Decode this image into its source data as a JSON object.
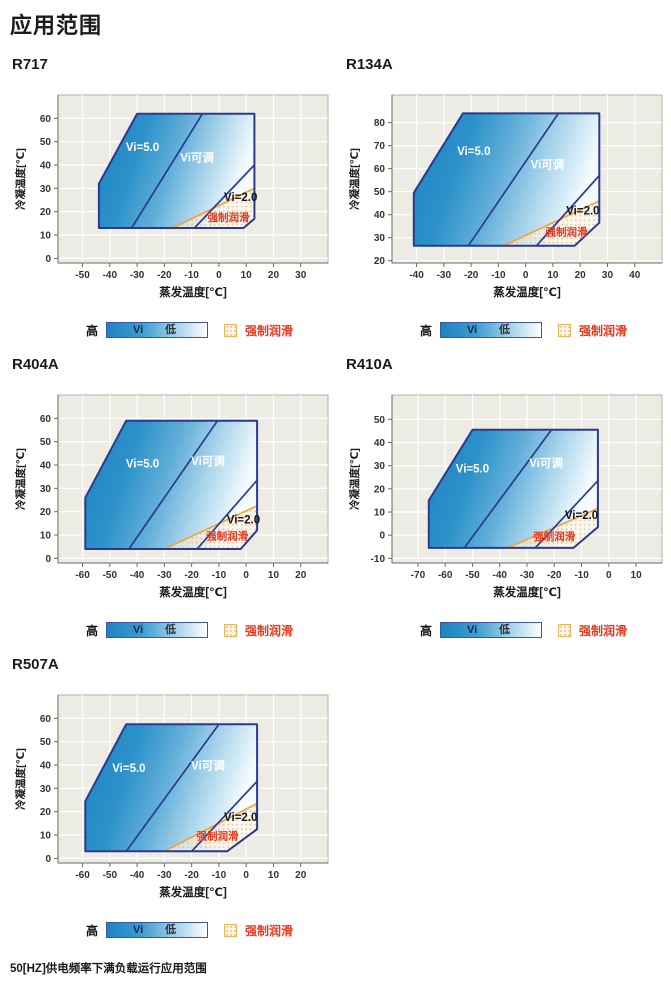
{
  "page": {
    "title": "应用范围",
    "footnote": "50[HZ]供电频率下满负载运行应用范围"
  },
  "legend": {
    "high": "高",
    "vi": "Vi",
    "low": "低",
    "forced": "强制润滑"
  },
  "colors": {
    "plot_bg": "#ecebe4",
    "grid": "#ffffff",
    "frame": "#b3b1a7",
    "axis": "#6b6963",
    "tick_text": "#34322e",
    "region_border": "#2b3a8f",
    "fill_dark": "#1d83c1",
    "fill_light": "#f4fbff",
    "forced_line": "#f2a33c",
    "label_light": "#ffffff",
    "label_dark": "#15151a",
    "label_red": "#e23a1e"
  },
  "chart_data": [
    {
      "type": "area",
      "name": "R717",
      "xlabel": "蒸发温度[℃]",
      "ylabel": "冷凝温度[℃]",
      "xlim": [
        -59,
        40
      ],
      "ylim": [
        -2,
        70
      ],
      "xticks": [
        -50,
        -40,
        -30,
        -20,
        -10,
        0,
        10,
        20,
        30
      ],
      "yticks": [
        0,
        10,
        20,
        30,
        40,
        50,
        60
      ],
      "envelope": [
        [
          -44,
          13
        ],
        [
          -44,
          32
        ],
        [
          -30,
          62
        ],
        [
          13,
          62
        ],
        [
          13,
          17
        ],
        [
          9,
          13
        ]
      ],
      "vi50_boundary": [
        [
          -32,
          13
        ],
        [
          -6,
          62
        ]
      ],
      "vi20_boundary": [
        [
          -9,
          13
        ],
        [
          13,
          40
        ]
      ],
      "forced_lube_boundary": [
        [
          -17,
          13
        ],
        [
          13,
          30
        ]
      ],
      "forced_lube_region": [
        [
          -17,
          13
        ],
        [
          13,
          30
        ],
        [
          13,
          17
        ],
        [
          9,
          13
        ]
      ],
      "annotations": [
        {
          "id": "vi50",
          "text": "Vi=5.0",
          "x": -28,
          "y": 46,
          "color": "light"
        },
        {
          "id": "vi-adjustable",
          "text": "Vi可调",
          "x": -8,
          "y": 41.5,
          "color": "light"
        },
        {
          "id": "vi20",
          "text": "Vi=2.0",
          "x": 8,
          "y": 24.5,
          "color": "dark"
        },
        {
          "id": "forced-lube",
          "text": "强制润滑",
          "x": 3.5,
          "y": 16,
          "color": "red"
        }
      ]
    },
    {
      "type": "area",
      "name": "R134A",
      "xlabel": "蒸发温度[℃]",
      "ylabel": "冷凝温度[℃]",
      "xlim": [
        -49,
        50
      ],
      "ylim": [
        19,
        92
      ],
      "xticks": [
        -40,
        -30,
        -20,
        -10,
        0,
        10,
        20,
        30,
        40
      ],
      "yticks": [
        20,
        30,
        40,
        50,
        60,
        70,
        80
      ],
      "envelope": [
        [
          -41,
          26.5
        ],
        [
          -41,
          49.5
        ],
        [
          -23,
          84
        ],
        [
          27,
          84
        ],
        [
          27,
          36.5
        ],
        [
          18,
          26.5
        ]
      ],
      "vi50_boundary": [
        [
          -21,
          26.5
        ],
        [
          12,
          84
        ]
      ],
      "vi20_boundary": [
        [
          4,
          26.5
        ],
        [
          27,
          57
        ]
      ],
      "forced_lube_boundary": [
        [
          -8,
          26.5
        ],
        [
          27,
          46
        ]
      ],
      "forced_lube_region": [
        [
          -8,
          26.5
        ],
        [
          27,
          46
        ],
        [
          27,
          36.5
        ],
        [
          18,
          26.5
        ]
      ],
      "annotations": [
        {
          "id": "vi50",
          "text": "Vi=5.0",
          "x": -19,
          "y": 66,
          "color": "light"
        },
        {
          "id": "vi-adjustable",
          "text": "Vi可调",
          "x": 8,
          "y": 60,
          "color": "light"
        },
        {
          "id": "vi20",
          "text": "Vi=2.0",
          "x": 21,
          "y": 40,
          "color": "dark"
        },
        {
          "id": "forced-lube",
          "text": "强制润滑",
          "x": 15,
          "y": 31,
          "color": "red"
        }
      ]
    },
    {
      "type": "area",
      "name": "R404A",
      "xlabel": "蒸发温度[℃]",
      "ylabel": "冷凝温度[℃]",
      "xlim": [
        -69,
        30
      ],
      "ylim": [
        -2,
        70
      ],
      "xticks": [
        -60,
        -50,
        -40,
        -30,
        -20,
        -10,
        0,
        10,
        20
      ],
      "yticks": [
        0,
        10,
        20,
        30,
        40,
        50,
        60
      ],
      "envelope": [
        [
          -59,
          4
        ],
        [
          -59,
          26
        ],
        [
          -44,
          59
        ],
        [
          4,
          59
        ],
        [
          4,
          12
        ],
        [
          -2,
          4
        ]
      ],
      "vi50_boundary": [
        [
          -43,
          4
        ],
        [
          -10.5,
          59
        ]
      ],
      "vi20_boundary": [
        [
          -18,
          4
        ],
        [
          4,
          33.5
        ]
      ],
      "forced_lube_boundary": [
        [
          -30,
          4
        ],
        [
          4,
          22.5
        ]
      ],
      "forced_lube_region": [
        [
          -30,
          4
        ],
        [
          4,
          22.5
        ],
        [
          4,
          12
        ],
        [
          -2,
          4
        ]
      ],
      "annotations": [
        {
          "id": "vi50",
          "text": "Vi=5.0",
          "x": -38,
          "y": 39,
          "color": "light"
        },
        {
          "id": "vi-adjustable",
          "text": "Vi可调",
          "x": -14,
          "y": 40,
          "color": "light"
        },
        {
          "id": "vi20",
          "text": "Vi=2.0",
          "x": -1,
          "y": 15,
          "color": "dark"
        },
        {
          "id": "forced-lube",
          "text": "强制润滑",
          "x": -7,
          "y": 8,
          "color": "red"
        }
      ]
    },
    {
      "type": "area",
      "name": "R410A",
      "xlabel": "蒸发温度[℃]",
      "ylabel": "冷凝温度[℃]",
      "xlim": [
        -79.5,
        19.5
      ],
      "ylim": [
        -12,
        60.5
      ],
      "xticks": [
        -70,
        -60,
        -50,
        -40,
        -30,
        -20,
        -10,
        0,
        10
      ],
      "yticks": [
        -10,
        0,
        10,
        20,
        30,
        40,
        50
      ],
      "envelope": [
        [
          -66,
          -5.5
        ],
        [
          -66,
          15
        ],
        [
          -50,
          45.5
        ],
        [
          -4,
          45.5
        ],
        [
          -4,
          3.5
        ],
        [
          -13,
          -5.5
        ]
      ],
      "vi50_boundary": [
        [
          -53,
          -5.5
        ],
        [
          -21,
          45.5
        ]
      ],
      "vi20_boundary": [
        [
          -27,
          -5.5
        ],
        [
          -4,
          23.5
        ]
      ],
      "forced_lube_boundary": [
        [
          -37,
          -5.5
        ],
        [
          -4,
          11.5
        ]
      ],
      "forced_lube_region": [
        [
          -37,
          -5.5
        ],
        [
          -4,
          11.5
        ],
        [
          -4,
          3.5
        ],
        [
          -13,
          -5.5
        ]
      ],
      "annotations": [
        {
          "id": "vi50",
          "text": "Vi=5.0",
          "x": -50,
          "y": 27,
          "color": "light"
        },
        {
          "id": "vi-adjustable",
          "text": "Vi可调",
          "x": -23,
          "y": 29.5,
          "color": "light"
        },
        {
          "id": "vi20",
          "text": "Vi=2.0",
          "x": -10,
          "y": 7,
          "color": "dark"
        },
        {
          "id": "forced-lube",
          "text": "强制润滑",
          "x": -20,
          "y": -2,
          "color": "red"
        }
      ]
    },
    {
      "type": "area",
      "name": "R507A",
      "xlabel": "蒸发温度[℃]",
      "ylabel": "冷凝温度[℃]",
      "xlim": [
        -69,
        30
      ],
      "ylim": [
        -2,
        70
      ],
      "xticks": [
        -60,
        -50,
        -40,
        -30,
        -20,
        -10,
        0,
        10,
        20
      ],
      "yticks": [
        0,
        10,
        20,
        30,
        40,
        50,
        60
      ],
      "envelope": [
        [
          -59,
          3
        ],
        [
          -59,
          24.5
        ],
        [
          -44,
          57.5
        ],
        [
          4,
          57.5
        ],
        [
          4,
          12.5
        ],
        [
          -7,
          3
        ]
      ],
      "vi50_boundary": [
        [
          -44,
          3
        ],
        [
          -10,
          57.5
        ]
      ],
      "vi20_boundary": [
        [
          -20,
          3
        ],
        [
          4,
          33
        ]
      ],
      "forced_lube_boundary": [
        [
          -30,
          3
        ],
        [
          4,
          23.5
        ]
      ],
      "forced_lube_region": [
        [
          -30,
          3
        ],
        [
          4,
          23.5
        ],
        [
          4,
          12.5
        ],
        [
          -7,
          3
        ]
      ],
      "annotations": [
        {
          "id": "vi50",
          "text": "Vi=5.0",
          "x": -43,
          "y": 37,
          "color": "light"
        },
        {
          "id": "vi-adjustable",
          "text": "Vi可调",
          "x": -14,
          "y": 38,
          "color": "light"
        },
        {
          "id": "vi20",
          "text": "Vi=2.0",
          "x": -2,
          "y": 16,
          "color": "dark"
        },
        {
          "id": "forced-lube",
          "text": "强制润滑",
          "x": -10.5,
          "y": 8,
          "color": "red"
        }
      ]
    }
  ]
}
